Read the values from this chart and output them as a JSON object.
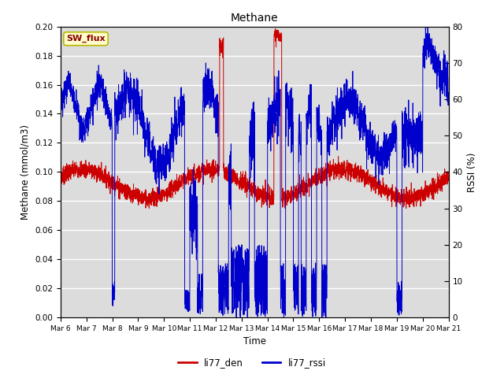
{
  "title": "Methane",
  "xlabel": "Time",
  "ylabel_left": "Methane (mmol/m3)",
  "ylabel_right": "RSSI (%)",
  "legend_label1": "li77_den",
  "legend_label2": "li77_rssi",
  "annotation_text": "SW_flux",
  "ylim_left": [
    0.0,
    0.2
  ],
  "ylim_right": [
    0,
    80
  ],
  "yticks_left": [
    0.0,
    0.02,
    0.04,
    0.06,
    0.08,
    0.1,
    0.12,
    0.14,
    0.16,
    0.18,
    0.2
  ],
  "yticks_right": [
    0,
    10,
    20,
    30,
    40,
    50,
    60,
    70,
    80
  ],
  "xtick_labels": [
    "Mar 6",
    "Mar 7",
    "Mar 8",
    "Mar 9",
    "Mar 10",
    "Mar 11",
    "Mar 12",
    "Mar 13",
    "Mar 14",
    "Mar 15",
    "Mar 16",
    "Mar 17",
    "Mar 18",
    "Mar 19",
    "Mar 20",
    "Mar 21"
  ],
  "color_den": "#cc0000",
  "color_rssi": "#0000cc",
  "bg_color": "#dcdcdc",
  "annotation_bg": "#ffffcc",
  "annotation_border": "#b8b800"
}
